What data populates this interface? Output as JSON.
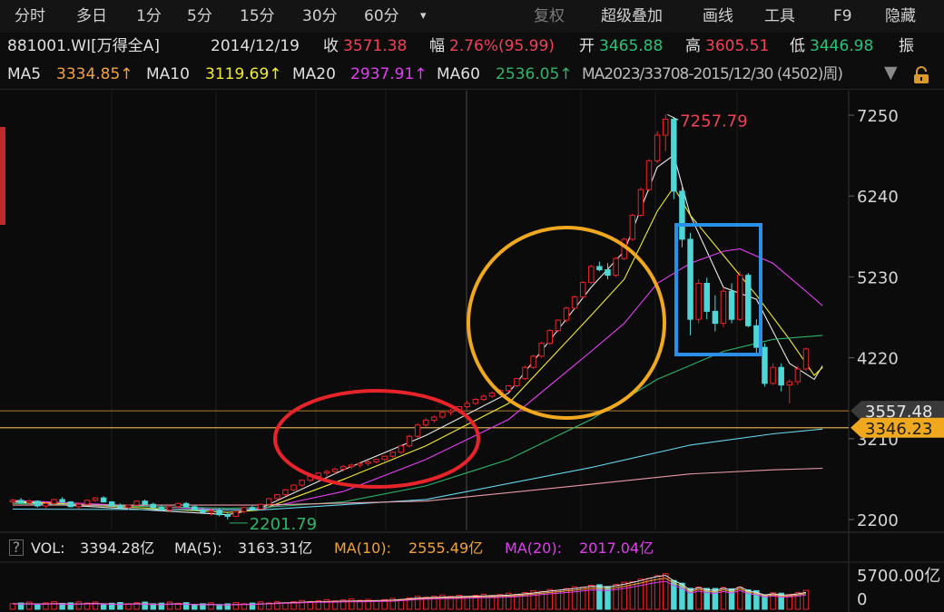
{
  "toolbar": {
    "tabs": [
      "分时",
      "多日",
      "1分",
      "5分",
      "15分",
      "30分",
      "60分"
    ],
    "dropdown_glyph": "▾",
    "tools": [
      "复权",
      "超级叠加",
      "画线",
      "工具",
      "F9",
      "隐藏"
    ]
  },
  "quote": {
    "code": "881001.WI[万得全A]",
    "date": "2014/12/19",
    "close_label": "收",
    "close": "3571.38",
    "change_label": "幅",
    "change": "2.76%(95.99)",
    "open_label": "开",
    "open": "3465.88",
    "high_label": "高",
    "high": "3605.51",
    "low_label": "低",
    "low": "3446.98",
    "amp_label": "振"
  },
  "ma_bar": {
    "ma5_label": "MA5",
    "ma5": "3334.85↑",
    "ma10_label": "MA10",
    "ma10": "3119.69↑",
    "ma20_label": "MA20",
    "ma20": "2937.91↑",
    "ma60_label": "MA60",
    "ma60": "2536.05↑",
    "overlap_text": "MA2023/33708-2015/12/30 (4502)周)",
    "icons": [
      "triangle-down-icon",
      "lock-icon"
    ]
  },
  "volume": {
    "label": "VOL:",
    "vol": "3394.28亿",
    "ma5_label": "MA(5):",
    "ma5": "3163.31亿",
    "ma10_label": "MA(10):",
    "ma10": "2555.49亿",
    "ma20_label": "MA(20):",
    "ma20": "2017.04亿",
    "axis_top": "5700.00亿",
    "axis_zero": "0"
  },
  "colors": {
    "up": "#e8232a",
    "down": "#4fd6d6",
    "ma5": "#e8e8e8",
    "ma10": "#f3ec2e",
    "ma20": "#e23ef2",
    "ma60": "#2fb46a",
    "ma120": "#67d8f0",
    "ma250": "#e89aa8",
    "circle_red": "#e8242a",
    "circle_orange": "#f0a81e",
    "box_blue": "#2a8fe6"
  },
  "chart_data": {
    "type": "candlestick",
    "y_ticks": [
      2200,
      3210,
      4220,
      5230,
      6240,
      7250
    ],
    "ylim": [
      1990,
      7580
    ],
    "annotations": {
      "max": "7257.79",
      "min": "2201.79",
      "price_line_1": "3557.48",
      "price_line_2": "3346.23"
    },
    "price_lines": [
      3557.48,
      3346.23
    ],
    "candles": [
      [
        2420,
        2460,
        2390,
        2440
      ],
      [
        2440,
        2470,
        2400,
        2410
      ],
      [
        2410,
        2450,
        2380,
        2430
      ],
      [
        2430,
        2440,
        2350,
        2370
      ],
      [
        2370,
        2420,
        2340,
        2400
      ],
      [
        2400,
        2460,
        2380,
        2450
      ],
      [
        2450,
        2480,
        2400,
        2420
      ],
      [
        2420,
        2430,
        2350,
        2360
      ],
      [
        2360,
        2410,
        2330,
        2390
      ],
      [
        2390,
        2450,
        2380,
        2440
      ],
      [
        2440,
        2480,
        2420,
        2470
      ],
      [
        2470,
        2490,
        2410,
        2420
      ],
      [
        2420,
        2430,
        2360,
        2370
      ],
      [
        2370,
        2400,
        2330,
        2350
      ],
      [
        2350,
        2390,
        2320,
        2380
      ],
      [
        2380,
        2440,
        2370,
        2430
      ],
      [
        2430,
        2450,
        2380,
        2390
      ],
      [
        2390,
        2410,
        2340,
        2350
      ],
      [
        2350,
        2380,
        2300,
        2320
      ],
      [
        2320,
        2370,
        2290,
        2360
      ],
      [
        2360,
        2410,
        2340,
        2400
      ],
      [
        2400,
        2420,
        2350,
        2360
      ],
      [
        2360,
        2380,
        2310,
        2320
      ],
      [
        2320,
        2350,
        2270,
        2290
      ],
      [
        2290,
        2330,
        2250,
        2310
      ],
      [
        2310,
        2340,
        2240,
        2260
      ],
      [
        2260,
        2290,
        2201.79,
        2240
      ],
      [
        2240,
        2310,
        2230,
        2300
      ],
      [
        2300,
        2360,
        2280,
        2350
      ],
      [
        2350,
        2380,
        2310,
        2330
      ],
      [
        2330,
        2400,
        2320,
        2390
      ],
      [
        2390,
        2470,
        2380,
        2460
      ],
      [
        2460,
        2520,
        2440,
        2510
      ],
      [
        2510,
        2580,
        2490,
        2570
      ],
      [
        2570,
        2640,
        2550,
        2630
      ],
      [
        2630,
        2700,
        2610,
        2690
      ],
      [
        2690,
        2750,
        2670,
        2740
      ],
      [
        2740,
        2790,
        2710,
        2780
      ],
      [
        2780,
        2820,
        2740,
        2800
      ],
      [
        2800,
        2850,
        2770,
        2830
      ],
      [
        2830,
        2880,
        2800,
        2860
      ],
      [
        2860,
        2900,
        2830,
        2880
      ],
      [
        2880,
        2910,
        2850,
        2900
      ],
      [
        2900,
        2940,
        2870,
        2920
      ],
      [
        2920,
        2960,
        2900,
        2950
      ],
      [
        2950,
        3000,
        2930,
        2990
      ],
      [
        2990,
        3050,
        2970,
        3040
      ],
      [
        3040,
        3130,
        3020,
        3120
      ],
      [
        3120,
        3260,
        3100,
        3240
      ],
      [
        3240,
        3400,
        3220,
        3380
      ],
      [
        3380,
        3470,
        3350,
        3440
      ],
      [
        3440,
        3500,
        3410,
        3480
      ],
      [
        3480,
        3550,
        3460,
        3540
      ],
      [
        3540,
        3580,
        3500,
        3560
      ],
      [
        3560,
        3620,
        3530,
        3610
      ],
      [
        3610,
        3680,
        3590,
        3650
      ],
      [
        3650,
        3720,
        3630,
        3700
      ],
      [
        3700,
        3760,
        3680,
        3740
      ],
      [
        3740,
        3800,
        3720,
        3780
      ],
      [
        3780,
        3830,
        3750,
        3810
      ],
      [
        3810,
        3880,
        3790,
        3870
      ],
      [
        3870,
        3970,
        3850,
        3960
      ],
      [
        3960,
        4120,
        3940,
        4100
      ],
      [
        4100,
        4260,
        4080,
        4240
      ],
      [
        4240,
        4420,
        4220,
        4400
      ],
      [
        4400,
        4580,
        4380,
        4560
      ],
      [
        4560,
        4700,
        4540,
        4690
      ],
      [
        4690,
        4860,
        4660,
        4840
      ],
      [
        4840,
        5000,
        4820,
        4980
      ],
      [
        4980,
        5180,
        4960,
        5160
      ],
      [
        5160,
        5380,
        5140,
        5360
      ],
      [
        5360,
        5420,
        5300,
        5320
      ],
      [
        5320,
        5400,
        5200,
        5250
      ],
      [
        5250,
        5480,
        5230,
        5460
      ],
      [
        5460,
        5720,
        5440,
        5700
      ],
      [
        5700,
        6020,
        5680,
        6000
      ],
      [
        6000,
        6350,
        5980,
        6320
      ],
      [
        6320,
        6700,
        6300,
        6680
      ],
      [
        6680,
        7050,
        6650,
        7000
      ],
      [
        7000,
        7257.79,
        6800,
        7200
      ],
      [
        7200,
        7230,
        6200,
        6300
      ],
      [
        6300,
        6350,
        5600,
        5700
      ],
      [
        5700,
        5780,
        4500,
        4700
      ],
      [
        4700,
        5200,
        4650,
        5150
      ],
      [
        5150,
        5220,
        4700,
        4800
      ],
      [
        4800,
        5000,
        4550,
        4650
      ],
      [
        4650,
        5100,
        4600,
        5050
      ],
      [
        5050,
        5150,
        4650,
        4700
      ],
      [
        4700,
        5300,
        4680,
        5250
      ],
      [
        5250,
        5280,
        4600,
        4620
      ],
      [
        4620,
        4700,
        4280,
        4350
      ],
      [
        4350,
        4400,
        3860,
        3900
      ],
      [
        3900,
        4150,
        3880,
        4100
      ],
      [
        4100,
        4150,
        3800,
        3880
      ],
      [
        3880,
        3950,
        3650,
        3920
      ],
      [
        3920,
        4120,
        3880,
        4080
      ],
      [
        4080,
        4350,
        4060,
        4330
      ]
    ],
    "ma": [
      {
        "name": "MA5",
        "color": "#e8e8e8",
        "values": [
          [
            0,
            2420
          ],
          [
            26,
            2260
          ],
          [
            30,
            2340
          ],
          [
            40,
            2820
          ],
          [
            50,
            3250
          ],
          [
            60,
            3780
          ],
          [
            70,
            5100
          ],
          [
            74,
            5550
          ],
          [
            78,
            6600
          ],
          [
            80,
            6750
          ],
          [
            82,
            6000
          ],
          [
            86,
            5100
          ],
          [
            90,
            4950
          ],
          [
            94,
            4150
          ],
          [
            97,
            3950
          ],
          [
            98,
            4120
          ]
        ]
      },
      {
        "name": "MA10",
        "color": "#f3ec2e",
        "values": [
          [
            0,
            2430
          ],
          [
            26,
            2290
          ],
          [
            30,
            2320
          ],
          [
            40,
            2700
          ],
          [
            50,
            3120
          ],
          [
            60,
            3650
          ],
          [
            70,
            4750
          ],
          [
            74,
            5200
          ],
          [
            78,
            6050
          ],
          [
            80,
            6350
          ],
          [
            82,
            6000
          ],
          [
            86,
            5500
          ],
          [
            90,
            5000
          ],
          [
            94,
            4450
          ],
          [
            97,
            4000
          ],
          [
            98,
            4100
          ]
        ]
      },
      {
        "name": "MA20",
        "color": "#e23ef2",
        "values": [
          [
            0,
            2440
          ],
          [
            26,
            2320
          ],
          [
            30,
            2330
          ],
          [
            40,
            2550
          ],
          [
            50,
            2950
          ],
          [
            60,
            3450
          ],
          [
            70,
            4300
          ],
          [
            74,
            4650
          ],
          [
            78,
            5150
          ],
          [
            82,
            5400
          ],
          [
            86,
            5550
          ],
          [
            88,
            5580
          ],
          [
            92,
            5400
          ],
          [
            96,
            5050
          ],
          [
            98,
            4870
          ]
        ]
      },
      {
        "name": "MA60",
        "color": "#2fb46a",
        "values": [
          [
            0,
            2400
          ],
          [
            26,
            2340
          ],
          [
            30,
            2350
          ],
          [
            40,
            2420
          ],
          [
            50,
            2620
          ],
          [
            60,
            2950
          ],
          [
            70,
            3450
          ],
          [
            78,
            3950
          ],
          [
            86,
            4300
          ],
          [
            92,
            4450
          ],
          [
            98,
            4500
          ]
        ]
      },
      {
        "name": "MA120",
        "color": "#67d8f0",
        "values": [
          [
            0,
            2330
          ],
          [
            30,
            2320
          ],
          [
            50,
            2450
          ],
          [
            70,
            2850
          ],
          [
            82,
            3130
          ],
          [
            92,
            3270
          ],
          [
            98,
            3330
          ]
        ]
      },
      {
        "name": "MA250",
        "color": "#e89aa8",
        "values": [
          [
            0,
            2380
          ],
          [
            30,
            2380
          ],
          [
            50,
            2430
          ],
          [
            70,
            2640
          ],
          [
            82,
            2770
          ],
          [
            92,
            2820
          ],
          [
            98,
            2840
          ]
        ]
      }
    ],
    "volume_ylim": [
      0,
      5700
    ]
  }
}
